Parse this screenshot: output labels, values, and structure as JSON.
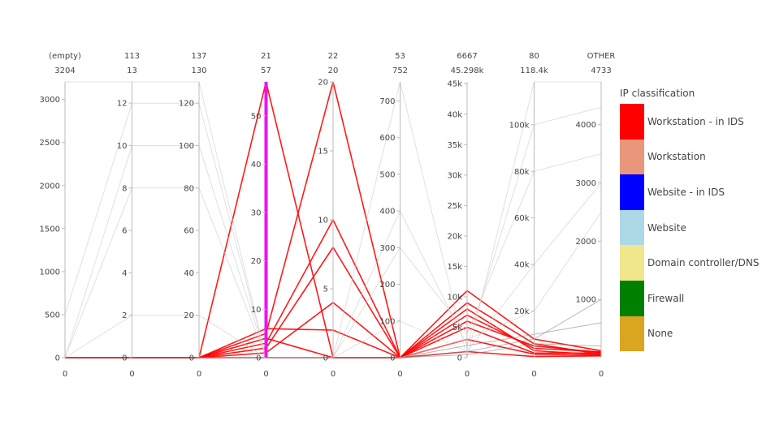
{
  "chart_data": {
    "type": "parallel_coordinates",
    "axes": [
      {
        "label_top": "(empty)",
        "label_max": "3204",
        "range": [
          0,
          3204
        ],
        "ticks": [
          0,
          500,
          1000,
          1500,
          2000,
          2500,
          3000
        ],
        "tick_labels": [
          "0",
          "500",
          "1000",
          "1500",
          "2000",
          "2500",
          "3000"
        ],
        "bottom_label": "0"
      },
      {
        "label_top": "113",
        "label_max": "13",
        "range": [
          0,
          13
        ],
        "ticks": [
          0,
          2,
          4,
          6,
          8,
          10,
          12
        ],
        "tick_labels": [
          "0",
          "2",
          "4",
          "6",
          "8",
          "10",
          "12"
        ],
        "bottom_label": "0"
      },
      {
        "label_top": "137",
        "label_max": "130",
        "range": [
          0,
          130
        ],
        "ticks": [
          0,
          20,
          40,
          60,
          80,
          100,
          120
        ],
        "tick_labels": [
          "0",
          "20",
          "40",
          "60",
          "80",
          "100",
          "120"
        ],
        "bottom_label": "0"
      },
      {
        "label_top": "21",
        "label_max": "57",
        "range": [
          0,
          57
        ],
        "ticks": [
          0,
          10,
          20,
          30,
          40,
          50
        ],
        "tick_labels": [
          "0",
          "10",
          "20",
          "30",
          "40",
          "50"
        ],
        "bottom_label": "0",
        "highlight_range": [
          0,
          57
        ],
        "highlight_color": "#ee11ee"
      },
      {
        "label_top": "22",
        "label_max": "20",
        "range": [
          0,
          20
        ],
        "ticks": [
          0,
          5,
          10,
          15,
          20
        ],
        "tick_labels": [
          "0",
          "5",
          "10",
          "15",
          "20"
        ],
        "bottom_label": "0"
      },
      {
        "label_top": "53",
        "label_max": "752",
        "range": [
          0,
          752
        ],
        "ticks": [
          0,
          100,
          200,
          300,
          400,
          500,
          600,
          700
        ],
        "tick_labels": [
          "0",
          "100",
          "200",
          "300",
          "400",
          "500",
          "600",
          "700"
        ],
        "bottom_label": "0"
      },
      {
        "label_top": "6667",
        "label_max": "45.298k",
        "range": [
          0,
          45298
        ],
        "ticks": [
          0,
          5000,
          10000,
          15000,
          20000,
          25000,
          30000,
          35000,
          40000,
          45000
        ],
        "tick_labels": [
          "0",
          "5k",
          "10k",
          "15k",
          "20k",
          "25k",
          "30k",
          "35k",
          "40k",
          "45k"
        ],
        "bottom_label": "0"
      },
      {
        "label_top": "80",
        "label_max": "118.4k",
        "range": [
          0,
          118400
        ],
        "ticks": [
          20000,
          40000,
          60000,
          80000,
          100000
        ],
        "tick_labels": [
          "20k",
          "40k",
          "60k",
          "80k",
          "100k"
        ],
        "bottom_label": "0"
      },
      {
        "label_top": "OTHER",
        "label_max": "4733",
        "range": [
          0,
          4733
        ],
        "ticks": [
          1000,
          2000,
          3000,
          4000
        ],
        "tick_labels": [
          "1000",
          "2000",
          "3000",
          "4000"
        ],
        "bottom_label": "0"
      }
    ],
    "series": [
      {
        "class": "Workstation - in IDS",
        "color": "#ff0000",
        "values": [
          0,
          0,
          0,
          57,
          0,
          0,
          5000,
          2000,
          80
        ]
      },
      {
        "class": "Workstation - in IDS",
        "color": "#ff0000",
        "values": [
          0,
          0,
          0,
          5,
          20,
          0,
          7000,
          4000,
          100
        ]
      },
      {
        "class": "Workstation - in IDS",
        "color": "#ff0000",
        "values": [
          0,
          0,
          0,
          3,
          10,
          0,
          9000,
          6000,
          60
        ]
      },
      {
        "class": "Workstation - in IDS",
        "color": "#ff0000",
        "values": [
          0,
          0,
          0,
          2,
          8,
          0,
          11000,
          8000,
          120
        ]
      },
      {
        "class": "Workstation - in IDS",
        "color": "#ff0000",
        "values": [
          0,
          0,
          0,
          1,
          4,
          0,
          8000,
          3000,
          50
        ]
      },
      {
        "class": "Workstation - in IDS",
        "color": "#ff0000",
        "values": [
          0,
          0,
          0,
          6,
          2,
          0,
          6000,
          5000,
          90
        ]
      },
      {
        "class": "Workstation - in IDS",
        "color": "#ff0000",
        "values": [
          0,
          0,
          0,
          4,
          0,
          0,
          3000,
          1500,
          40
        ]
      },
      {
        "class": "Workstation - in IDS",
        "color": "#ff0000",
        "values": [
          0,
          0,
          0,
          0,
          0,
          0,
          1000,
          500,
          30
        ]
      },
      {
        "class": "None",
        "color": "#cccccc",
        "values": [
          3204,
          13,
          130,
          0,
          0,
          752,
          0,
          118400,
          4733
        ]
      },
      {
        "class": "None",
        "color": "#cccccc",
        "values": [
          500,
          12,
          120,
          0,
          0,
          400,
          2000,
          100000,
          4300
        ]
      },
      {
        "class": "None",
        "color": "#cccccc",
        "values": [
          0,
          10,
          100,
          0,
          0,
          300,
          4000,
          80000,
          3500
        ]
      },
      {
        "class": "None",
        "color": "#cccccc",
        "values": [
          0,
          8,
          80,
          0,
          0,
          100,
          1000,
          40000,
          3000
        ]
      },
      {
        "class": "None",
        "color": "#cccccc",
        "values": [
          0,
          2,
          20,
          0,
          0,
          0,
          3000,
          20000,
          2500
        ]
      },
      {
        "class": "None",
        "color": "#888888",
        "values": [
          0,
          0,
          0,
          0,
          0,
          0,
          1000,
          8000,
          1000
        ]
      },
      {
        "class": "None",
        "color": "#888888",
        "values": [
          0,
          0,
          0,
          0,
          0,
          0,
          2000,
          10000,
          600
        ]
      },
      {
        "class": "None",
        "color": "#888888",
        "values": [
          0,
          0,
          0,
          0,
          0,
          0,
          500,
          6000,
          200
        ]
      }
    ],
    "legend": {
      "title": "IP classification",
      "placement": "right",
      "items": [
        {
          "label": "Workstation - in IDS",
          "color": "#ff0000"
        },
        {
          "label": "Workstation",
          "color": "#e9967a"
        },
        {
          "label": "Website - in IDS",
          "color": "#0000ff"
        },
        {
          "label": "Website",
          "color": "#add8e6"
        },
        {
          "label": "Domain controller/DNS",
          "color": "#f0e68c"
        },
        {
          "label": "Firewall",
          "color": "#008000"
        },
        {
          "label": "None",
          "color": "#daa520"
        }
      ]
    }
  }
}
